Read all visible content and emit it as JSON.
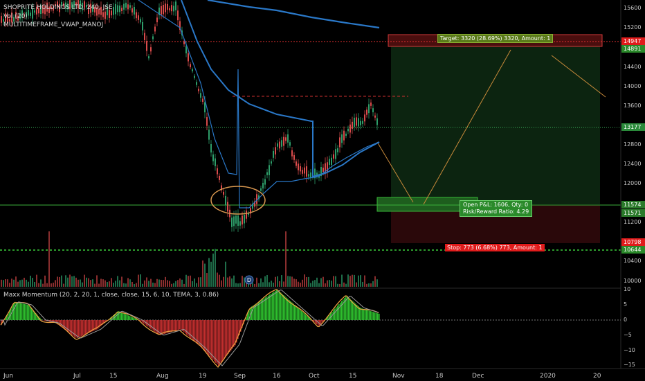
{
  "header": {
    "symbol": "SHOPRITE HOLDINGS LTD, 240, JSE",
    "vol": "Vol (20)",
    "indicator2": "MULTITIMEFRAME_VWAP_MANOJ",
    "osc": "Maxx Momentum (20, 2, 20, 1, close, close, 15, 6, 10, TEMA, 3, 0.86)"
  },
  "price_axis": [
    "15600",
    "15200",
    "14400",
    "14000",
    "13600",
    "12800",
    "12400",
    "12000",
    "11200",
    "10400",
    "10000"
  ],
  "price_tags": {
    "target_price": "14947",
    "target_top": "14891",
    "last_price": "13177",
    "entry1": "11574",
    "entry2": "11571",
    "stop_price": "10798",
    "stop_low": "10644"
  },
  "osc_axis": [
    "10",
    "5",
    "0",
    "−5",
    "−10",
    "−15"
  ],
  "x_axis": [
    "Jun",
    "Jul",
    "15",
    "Aug",
    "19",
    "Sep",
    "16",
    "Oct",
    "15",
    "Nov",
    "18",
    "Dec",
    "2020",
    "20"
  ],
  "labels": {
    "target": "Target: 3320 (28.69%) 3320, Amount: 1",
    "open_pl": "Open P&L: 1606, Qty: 0",
    "rr": "Risk/Reward Ratio: 4.29",
    "stop": "Stop: 773 (6.68%) 773, Amount: 1",
    "dividend": "D"
  },
  "colors": {
    "up": "#2e9e6a",
    "down": "#d94b4b",
    "vwap": "#2a78c8",
    "target_fill": "#0f2a0f",
    "stop_fill": "#2a0808",
    "ellipse": "#d99850"
  }
}
